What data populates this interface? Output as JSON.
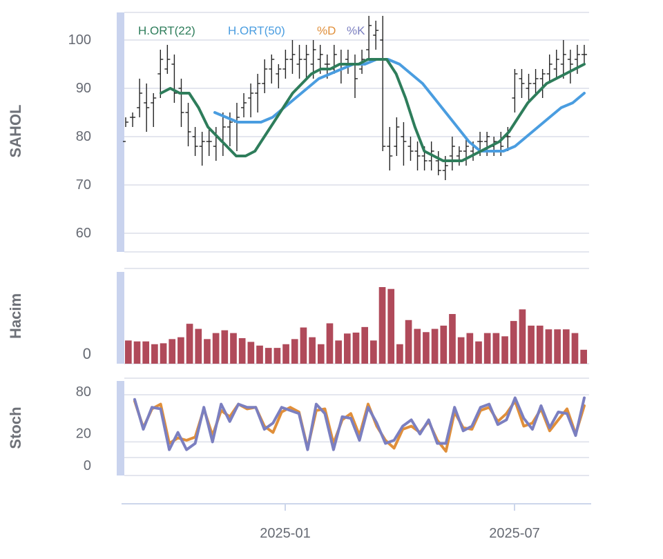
{
  "chart_data": [
    {
      "panel": "price",
      "type": "line",
      "ylabel": "SAHOL",
      "ylim": [
        57,
        106
      ],
      "yticks": [
        60,
        70,
        80,
        90,
        100
      ],
      "grid": true,
      "legend_placement": "top-left",
      "legend": [
        "H.ORT(22)",
        "H.ORT(50)",
        "%D",
        "%K"
      ],
      "ohlc_bars": [
        [
          79,
          84,
          82,
          83
        ],
        [
          84,
          85,
          82,
          84
        ],
        [
          86,
          92,
          84,
          89
        ],
        [
          87,
          91,
          81,
          86
        ],
        [
          87,
          89,
          82,
          88
        ],
        [
          93,
          98,
          88,
          96
        ],
        [
          94,
          99,
          93,
          96
        ],
        [
          95,
          97,
          87,
          89
        ],
        [
          90,
          92,
          82,
          85
        ],
        [
          85,
          87,
          78,
          81
        ],
        [
          80,
          82,
          76,
          78
        ],
        [
          78,
          81,
          74,
          79
        ],
        [
          79,
          82,
          76,
          79
        ],
        [
          78,
          82,
          75,
          80
        ],
        [
          79,
          85,
          76,
          82
        ],
        [
          82,
          85,
          78,
          83
        ],
        [
          83,
          87,
          77,
          84
        ],
        [
          86,
          89,
          84,
          87
        ],
        [
          88,
          91,
          84,
          89
        ],
        [
          89,
          93,
          85,
          91
        ],
        [
          91,
          96,
          89,
          94
        ],
        [
          94,
          97,
          91,
          96
        ],
        [
          93,
          95,
          90,
          94
        ],
        [
          94,
          98,
          92,
          96
        ],
        [
          96,
          100,
          93,
          97
        ],
        [
          95,
          99,
          92,
          96
        ],
        [
          96,
          99,
          92,
          97
        ],
        [
          95,
          100,
          92,
          98
        ],
        [
          96,
          99,
          93,
          97
        ],
        [
          95,
          97,
          92,
          95
        ],
        [
          94,
          99,
          93,
          97
        ],
        [
          95,
          98,
          91,
          95
        ],
        [
          96,
          98,
          93,
          95
        ],
        [
          95,
          97,
          88,
          92
        ],
        [
          94,
          98,
          93,
          96
        ],
        [
          98,
          105,
          96,
          103
        ],
        [
          101,
          104,
          98,
          102
        ],
        [
          100,
          105,
          77,
          78
        ],
        [
          78,
          82,
          73,
          76
        ],
        [
          78,
          84,
          76,
          82
        ],
        [
          80,
          83,
          74,
          79
        ],
        [
          78,
          80,
          75,
          77
        ],
        [
          77,
          79,
          73,
          76
        ],
        [
          76,
          78,
          73,
          75
        ],
        [
          75,
          79,
          73,
          77
        ],
        [
          75,
          77,
          72,
          73
        ],
        [
          73,
          76,
          71,
          74
        ],
        [
          76,
          80,
          73,
          78
        ],
        [
          76,
          78,
          74,
          77
        ],
        [
          77,
          80,
          74,
          78
        ],
        [
          77,
          79,
          75,
          78
        ],
        [
          79,
          81,
          76,
          79
        ],
        [
          79,
          81,
          76,
          80
        ],
        [
          78,
          80,
          76,
          79
        ],
        [
          79,
          81,
          76,
          78
        ],
        [
          80,
          82,
          77,
          80
        ],
        [
          88,
          94,
          85,
          93
        ],
        [
          92,
          94,
          88,
          91
        ],
        [
          90,
          93,
          87,
          91
        ],
        [
          91,
          94,
          89,
          92
        ],
        [
          92,
          94,
          88,
          93
        ],
        [
          93,
          97,
          91,
          95
        ],
        [
          94,
          98,
          92,
          96
        ],
        [
          95,
          100,
          92,
          97
        ],
        [
          96,
          98,
          91,
          95
        ],
        [
          96,
          99,
          93,
          97
        ],
        [
          97,
          99,
          95,
          97
        ]
      ],
      "series": [
        {
          "name": "H.ORT(22)",
          "color": "#2e7d5b",
          "values": [
            89,
            90,
            89,
            89,
            86,
            82,
            80,
            78,
            76,
            76,
            77,
            80,
            83,
            86,
            89,
            91,
            93,
            94,
            94,
            95,
            95,
            95,
            96,
            96,
            96,
            93,
            88,
            82,
            77,
            76,
            75,
            75,
            75,
            76,
            77,
            78,
            79,
            81,
            84,
            87,
            89,
            91,
            92,
            93,
            94,
            95
          ]
        },
        {
          "name": "H.ORT(50)",
          "color": "#4a9de0",
          "values": [
            85,
            84,
            83,
            83,
            83,
            84,
            86,
            88,
            90,
            92,
            93,
            94,
            95,
            95,
            96,
            96,
            95,
            93,
            91,
            88,
            85,
            82,
            79,
            77,
            77,
            77,
            78,
            80,
            82,
            84,
            86,
            87,
            89
          ]
        }
      ]
    },
    {
      "panel": "volume",
      "type": "bar",
      "ylabel": "Hacim",
      "yticks": [
        0
      ],
      "grid": true,
      "color": "#b04a5a",
      "values": [
        5,
        4.8,
        4.8,
        4.2,
        4.4,
        5.3,
        5.7,
        8.6,
        7.5,
        5.3,
        6.6,
        7.2,
        6.6,
        5.5,
        4.7,
        3.9,
        3.4,
        3.4,
        4.2,
        5.3,
        7.8,
        5.7,
        4.2,
        8.7,
        5,
        6.5,
        6.7,
        7.9,
        5,
        16.5,
        16.1,
        4.2,
        9.4,
        7.5,
        6.8,
        7.5,
        8.2,
        10.7,
        5.7,
        6.6,
        4.8,
        6.6,
        6.6,
        5.9,
        9.2,
        11.7,
        8.2,
        8.2,
        7.4,
        7.4,
        7.4,
        6.6,
        3
      ]
    },
    {
      "panel": "stoch",
      "type": "line",
      "ylabel": "Stoch",
      "ylim": [
        -7,
        85
      ],
      "yticks": [
        0,
        20,
        80
      ],
      "grid": true,
      "series": [
        {
          "name": "%D",
          "color": "#e08f3a",
          "values": [
            72,
            38,
            62,
            68,
            18,
            25,
            22,
            26,
            62,
            28,
            60,
            52,
            68,
            62,
            64,
            40,
            32,
            58,
            64,
            58,
            12,
            60,
            62,
            18,
            48,
            56,
            28,
            68,
            40,
            22,
            12,
            36,
            40,
            32,
            46,
            22,
            8,
            58,
            38,
            36,
            60,
            64,
            46,
            56,
            72,
            40,
            44,
            62,
            34,
            48,
            62,
            30,
            66
          ]
        },
        {
          "name": "%K",
          "color": "#7b7fc0",
          "values": [
            74,
            36,
            64,
            62,
            10,
            32,
            10,
            18,
            64,
            20,
            68,
            46,
            68,
            64,
            64,
            36,
            44,
            64,
            60,
            56,
            10,
            68,
            56,
            10,
            52,
            50,
            22,
            64,
            44,
            18,
            22,
            40,
            48,
            30,
            48,
            18,
            18,
            64,
            34,
            40,
            64,
            68,
            42,
            48,
            76,
            50,
            36,
            66,
            38,
            58,
            56,
            28,
            76
          ]
        }
      ]
    }
  ],
  "x_ticks": [
    "2025-01",
    "2025-07"
  ]
}
